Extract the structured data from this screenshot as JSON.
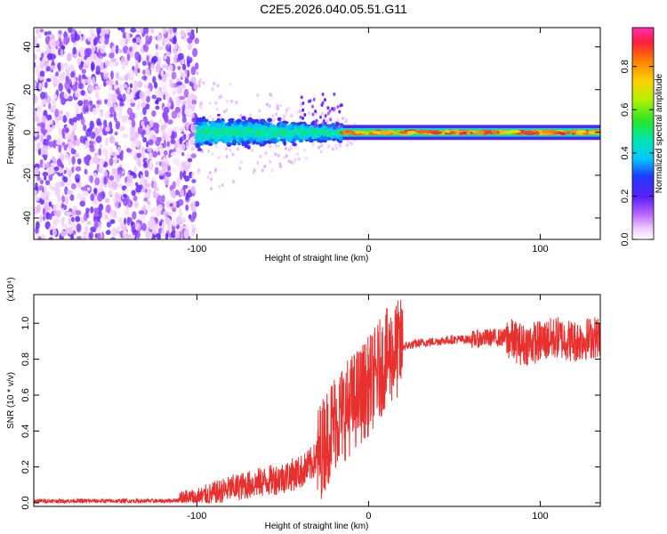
{
  "title": "C2E5.2026.040.05.51.G11",
  "chart_data": [
    {
      "type": "heatmap",
      "name": "spectrogram",
      "xlabel": "Height of straight line (km)",
      "ylabel": "Frequency (Hz)",
      "xlim": [
        -195,
        135
      ],
      "ylim": [
        -50,
        49
      ],
      "xticks": [
        -100,
        0,
        100
      ],
      "xtick_labels": [
        "-100",
        "0",
        "100"
      ],
      "yticks": [
        -40,
        -20,
        0,
        20,
        40
      ],
      "ytick_labels": [
        "-40",
        "-20",
        "0",
        "20",
        "40"
      ],
      "colorbar": {
        "label": "Normalized spectral amplitude",
        "range": [
          0,
          0.98
        ],
        "ticks": [
          0.0,
          0.2,
          0.4,
          0.6,
          0.8
        ],
        "tick_labels": [
          "0.0",
          "0.2",
          "0.4",
          "0.6",
          "0.8"
        ]
      },
      "regions": [
        {
          "name": "noise",
          "x": [
            -195,
            -100
          ],
          "freq": [
            -50,
            49
          ],
          "amplitude": [
            0.02,
            0.15
          ]
        },
        {
          "name": "spreading",
          "x": [
            -100,
            -15
          ],
          "freq": [
            -10,
            10
          ],
          "amplitude": [
            0.1,
            0.45
          ]
        },
        {
          "name": "tone",
          "x": [
            -15,
            135
          ],
          "freq": [
            -1,
            1
          ],
          "amplitude": [
            0.5,
            0.95
          ]
        }
      ]
    },
    {
      "type": "line",
      "name": "snr",
      "xlabel": "Height of straight line (km)",
      "ylabel": "SNR (10 * v/v)",
      "scale_label": "(x10⁴)",
      "xlim": [
        -195,
        135
      ],
      "ylim": [
        -0.02,
        1.16
      ],
      "xticks": [
        -100,
        0,
        100
      ],
      "xtick_labels": [
        "-100",
        "0",
        "100"
      ],
      "yticks": [
        0.0,
        0.2,
        0.4,
        0.6,
        0.8,
        1.0
      ],
      "ytick_labels": [
        "0.0",
        "0.2",
        "0.4",
        "0.6",
        "0.8",
        "1.0"
      ],
      "color": "#e8302f",
      "series": [
        {
          "name": "SNR envelope",
          "x": [
            -195,
            -120,
            -100,
            -90,
            -80,
            -70,
            -60,
            -50,
            -40,
            -35,
            -30,
            -25,
            -20,
            -15,
            -10,
            -5,
            0,
            5,
            10,
            15,
            20,
            30,
            40,
            50,
            60,
            70,
            80,
            90,
            100,
            110,
            120,
            135
          ],
          "values": [
            0.01,
            0.01,
            0.02,
            0.05,
            0.08,
            0.1,
            0.12,
            0.14,
            0.17,
            0.2,
            0.25,
            0.35,
            0.45,
            0.5,
            0.55,
            0.6,
            0.65,
            0.72,
            0.8,
            0.84,
            0.87,
            0.89,
            0.9,
            0.91,
            0.91,
            0.92,
            0.92,
            0.88,
            0.9,
            0.92,
            0.9,
            0.93
          ]
        }
      ]
    }
  ]
}
